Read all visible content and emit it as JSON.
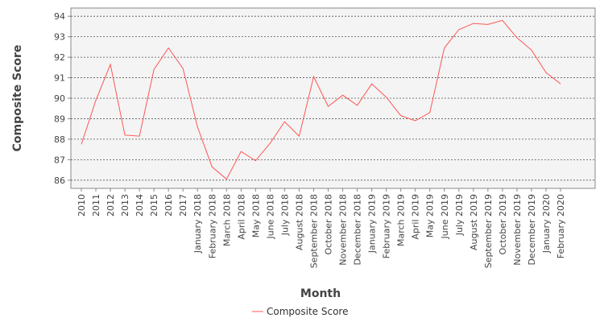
{
  "chart_data": {
    "type": "line",
    "xlabel": "Month",
    "ylabel": "Composite Score",
    "ylim": [
      85.6,
      94.4
    ],
    "yticks": [
      86,
      87,
      88,
      89,
      90,
      91,
      92,
      93,
      94
    ],
    "grid": true,
    "legend_position": "bottom-center",
    "categories": [
      "2010",
      "2011",
      "2012",
      "2013",
      "2014",
      "2015",
      "2016",
      "2017",
      "January 2018",
      "February 2018",
      "March 2018",
      "April 2018",
      "May 2018",
      "June 2018",
      "July 2018",
      "August 2018",
      "September 2018",
      "October 2018",
      "November 2018",
      "December 2018",
      "January 2019",
      "February 2019",
      "March 2019",
      "April 2019",
      "May 2019",
      "June 2019",
      "July 2019",
      "August 2019",
      "September 2019",
      "October 2019",
      "November 2019",
      "December 2019",
      "January 2020",
      "February 2020"
    ],
    "series": [
      {
        "name": "Composite Score",
        "color": "#ff5555",
        "values": [
          87.75,
          89.9,
          91.65,
          88.2,
          88.15,
          91.4,
          92.45,
          91.45,
          88.6,
          86.65,
          86.05,
          87.4,
          86.95,
          87.8,
          88.85,
          88.15,
          91.05,
          89.6,
          90.15,
          89.65,
          90.7,
          90.05,
          89.15,
          88.9,
          89.3,
          92.45,
          93.35,
          93.65,
          93.6,
          93.8,
          92.95,
          92.35,
          91.25,
          90.7
        ]
      }
    ]
  },
  "colors": {
    "plot_background": "#f4f4f4",
    "grid": "#555555",
    "axis": "#888888"
  }
}
